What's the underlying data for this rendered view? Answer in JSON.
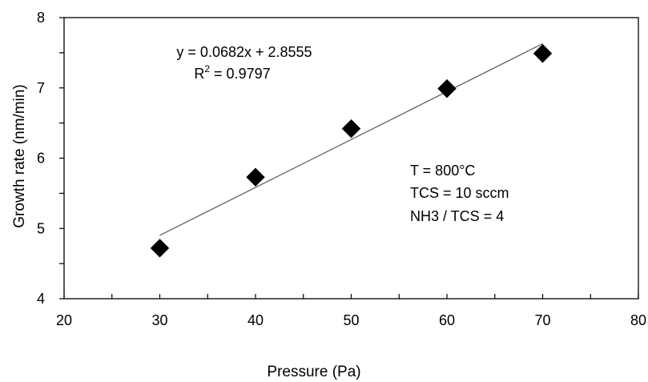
{
  "chart_data": {
    "type": "scatter",
    "xlabel": "Pressure (Pa)",
    "ylabel": "Growth rate (nm/min)",
    "xlim": [
      20,
      80
    ],
    "ylim": [
      4,
      8
    ],
    "x_ticks": [
      20,
      30,
      40,
      50,
      60,
      70,
      80
    ],
    "y_ticks": [
      4,
      5,
      6,
      7,
      8
    ],
    "x_minor_step": 5,
    "y_minor_step": 0.5,
    "grid": false,
    "legend": "none",
    "marker": "diamond",
    "marker_color": "#000000",
    "points": [
      {
        "x": 30,
        "y": 4.72
      },
      {
        "x": 40,
        "y": 5.73
      },
      {
        "x": 50,
        "y": 6.42
      },
      {
        "x": 60,
        "y": 6.99
      },
      {
        "x": 70,
        "y": 7.49
      }
    ],
    "trendline": {
      "type": "linear",
      "slope": 0.0682,
      "intercept": 2.8555,
      "x_range": [
        30,
        70
      ],
      "equation": "y = 0.0682x + 2.8555",
      "r2_prefix": "R",
      "r2_sup": "2",
      "r2_suffix": " = 0.9797"
    },
    "annotations": [
      "T = 800°C",
      "TCS = 10 sccm",
      "NH3 / TCS = 4"
    ]
  }
}
